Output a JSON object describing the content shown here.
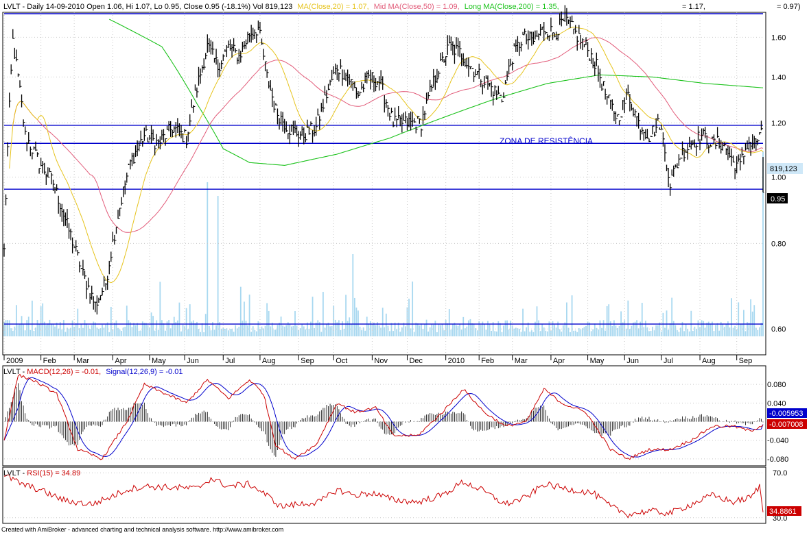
{
  "footer": "Created with AmiBroker - advanced charting and technical analysis software. http://www.amibroker.com",
  "colors": {
    "price": "#000000",
    "ma20": "#e6c31c",
    "ma50": "#e25c7a",
    "ma200": "#1bc21b",
    "volume": "#a8d8f0",
    "resistance": "#0000cc",
    "macd": "#cc0000",
    "signal": "#0000cc",
    "rsi": "#cc0000"
  },
  "price_header": {
    "ticker": "LVLT - Daily 14-09-2010 Open 1.06, Hi 1.07, Lo 0.95, Close 0.95 (-18.1%) Vol 819,123",
    "ma20": "MA(Close,20) = 1.07,",
    "ma50": "Mid MA(Close,50) = 1.09,",
    "ma200": "Long MA(Close,200) = 1.35,",
    "extra": "= 1.17,",
    "right": "= 0.97)"
  },
  "macd_header": {
    "prefix": "LVLT - ",
    "macd": "MACD(12,26) = -0.01,",
    "signal": "Signal(12,26,9) = -0.01"
  },
  "rsi_header": {
    "prefix": "LVLT - ",
    "rsi": "RSI(15) = 34.89"
  },
  "annotation": "ZONA DE RESISTÊNCIA",
  "chart_data": [
    {
      "type": "line",
      "panel": "price",
      "title": "LVLT - Daily",
      "y_scale": "log",
      "ylim": [
        0.55,
        1.74
      ],
      "y_ticks": [
        "1.60",
        "1.40",
        "1.20",
        "1.00",
        "0.80",
        "0.60"
      ],
      "x_labels": [
        "2009",
        "Feb",
        "Mar",
        "Apr",
        "May",
        "Jun",
        "Jul",
        "Aug",
        "Sep",
        "Oct",
        "Nov",
        "Dec",
        "2010",
        "Feb",
        "Mar",
        "Apr",
        "May",
        "Jun",
        "Jul",
        "Aug",
        "Sep"
      ],
      "close_anchors": [
        [
          0,
          0.78
        ],
        [
          5,
          1.58
        ],
        [
          12,
          1.15
        ],
        [
          20,
          1.05
        ],
        [
          28,
          0.98
        ],
        [
          36,
          0.85
        ],
        [
          45,
          0.72
        ],
        [
          52,
          0.65
        ],
        [
          58,
          0.7
        ],
        [
          65,
          0.88
        ],
        [
          72,
          1.05
        ],
        [
          80,
          1.15
        ],
        [
          88,
          1.12
        ],
        [
          96,
          1.18
        ],
        [
          104,
          1.14
        ],
        [
          110,
          1.35
        ],
        [
          116,
          1.55
        ],
        [
          122,
          1.45
        ],
        [
          128,
          1.55
        ],
        [
          134,
          1.5
        ],
        [
          140,
          1.62
        ],
        [
          145,
          1.65
        ],
        [
          150,
          1.4
        ],
        [
          155,
          1.25
        ],
        [
          162,
          1.18
        ],
        [
          170,
          1.15
        ],
        [
          178,
          1.18
        ],
        [
          184,
          1.32
        ],
        [
          190,
          1.45
        ],
        [
          196,
          1.4
        ],
        [
          202,
          1.32
        ],
        [
          208,
          1.4
        ],
        [
          214,
          1.38
        ],
        [
          222,
          1.2
        ],
        [
          230,
          1.2
        ],
        [
          238,
          1.2
        ],
        [
          246,
          1.4
        ],
        [
          254,
          1.55
        ],
        [
          260,
          1.52
        ],
        [
          266,
          1.45
        ],
        [
          272,
          1.4
        ],
        [
          278,
          1.35
        ],
        [
          284,
          1.3
        ],
        [
          290,
          1.5
        ],
        [
          296,
          1.6
        ],
        [
          302,
          1.58
        ],
        [
          308,
          1.65
        ],
        [
          314,
          1.62
        ],
        [
          320,
          1.7
        ],
        [
          326,
          1.62
        ],
        [
          332,
          1.55
        ],
        [
          338,
          1.45
        ],
        [
          344,
          1.3
        ],
        [
          350,
          1.22
        ],
        [
          356,
          1.32
        ],
        [
          362,
          1.2
        ],
        [
          368,
          1.15
        ],
        [
          374,
          1.2
        ],
        [
          380,
          0.98
        ],
        [
          386,
          1.08
        ],
        [
          392,
          1.12
        ],
        [
          398,
          1.15
        ],
        [
          404,
          1.12
        ],
        [
          410,
          1.12
        ],
        [
          416,
          1.05
        ],
        [
          420,
          1.04
        ],
        [
          424,
          1.12
        ],
        [
          428,
          1.12
        ],
        [
          432,
          1.15
        ],
        [
          433,
          0.95
        ]
      ],
      "ma20_last": 1.07,
      "ma50_last": 1.09,
      "ma200_last": 1.35,
      "ma200_anchors": [
        [
          60,
          1.7
        ],
        [
          90,
          1.55
        ],
        [
          110,
          1.28
        ],
        [
          125,
          1.1
        ],
        [
          140,
          1.05
        ],
        [
          160,
          1.04
        ],
        [
          190,
          1.08
        ],
        [
          220,
          1.14
        ],
        [
          250,
          1.22
        ],
        [
          280,
          1.3
        ],
        [
          310,
          1.37
        ],
        [
          340,
          1.41
        ],
        [
          370,
          1.4
        ],
        [
          400,
          1.37
        ],
        [
          433,
          1.35
        ]
      ],
      "resistance_levels": [
        1.19,
        1.12,
        0.96,
        0.61
      ],
      "last_close": "0.95",
      "last_volume": "819,123",
      "volume": {
        "peak_bar": 433,
        "peak_value": 819123
      }
    },
    {
      "type": "line",
      "panel": "macd",
      "series": [
        {
          "name": "MACD(12,26)",
          "last": -0.007
        },
        {
          "name": "Signal(12,26,9)",
          "last": -0.00595
        }
      ],
      "ylim": [
        -0.095,
        0.12
      ],
      "y_ticks": [
        "0.080",
        "0.040",
        "-0.040",
        "-0.080"
      ],
      "macd_anchors": [
        [
          0,
          -0.04
        ],
        [
          8,
          0.1
        ],
        [
          16,
          0.09
        ],
        [
          30,
          0.06
        ],
        [
          42,
          -0.06
        ],
        [
          56,
          -0.08
        ],
        [
          70,
          0.0
        ],
        [
          80,
          0.08
        ],
        [
          92,
          0.06
        ],
        [
          104,
          0.04
        ],
        [
          116,
          0.09
        ],
        [
          128,
          0.05
        ],
        [
          140,
          0.09
        ],
        [
          148,
          0.06
        ],
        [
          155,
          -0.05
        ],
        [
          165,
          -0.08
        ],
        [
          178,
          -0.05
        ],
        [
          190,
          0.04
        ],
        [
          200,
          0.02
        ],
        [
          212,
          0.03
        ],
        [
          222,
          -0.03
        ],
        [
          236,
          -0.03
        ],
        [
          250,
          0.02
        ],
        [
          262,
          0.07
        ],
        [
          274,
          0.02
        ],
        [
          286,
          -0.01
        ],
        [
          298,
          0.0
        ],
        [
          308,
          0.07
        ],
        [
          318,
          0.04
        ],
        [
          332,
          0.02
        ],
        [
          346,
          -0.06
        ],
        [
          356,
          -0.08
        ],
        [
          368,
          -0.06
        ],
        [
          380,
          -0.06
        ],
        [
          392,
          -0.04
        ],
        [
          404,
          -0.01
        ],
        [
          416,
          -0.01
        ],
        [
          426,
          -0.02
        ],
        [
          433,
          -0.007
        ]
      ],
      "last_signal": "-0.005953",
      "last_macd": "-0.007008"
    },
    {
      "type": "line",
      "panel": "rsi",
      "series": [
        {
          "name": "RSI(15)",
          "last": 34.89
        }
      ],
      "ylim": [
        25,
        75
      ],
      "y_ticks": [
        "70.0",
        "30.0"
      ],
      "rsi_anchors": [
        [
          0,
          68
        ],
        [
          10,
          60
        ],
        [
          20,
          55
        ],
        [
          35,
          45
        ],
        [
          50,
          42
        ],
        [
          60,
          48
        ],
        [
          70,
          55
        ],
        [
          80,
          58
        ],
        [
          95,
          57
        ],
        [
          110,
          56
        ],
        [
          118,
          65
        ],
        [
          128,
          58
        ],
        [
          140,
          60
        ],
        [
          148,
          52
        ],
        [
          158,
          40
        ],
        [
          168,
          42
        ],
        [
          180,
          44
        ],
        [
          190,
          55
        ],
        [
          200,
          50
        ],
        [
          210,
          52
        ],
        [
          222,
          46
        ],
        [
          236,
          44
        ],
        [
          250,
          50
        ],
        [
          262,
          62
        ],
        [
          272,
          55
        ],
        [
          286,
          42
        ],
        [
          298,
          48
        ],
        [
          308,
          60
        ],
        [
          320,
          56
        ],
        [
          336,
          52
        ],
        [
          346,
          40
        ],
        [
          356,
          33
        ],
        [
          368,
          36
        ],
        [
          380,
          34
        ],
        [
          392,
          42
        ],
        [
          404,
          50
        ],
        [
          416,
          44
        ],
        [
          426,
          48
        ],
        [
          431,
          58
        ],
        [
          433,
          35
        ]
      ],
      "last_label": "34.8861"
    }
  ]
}
